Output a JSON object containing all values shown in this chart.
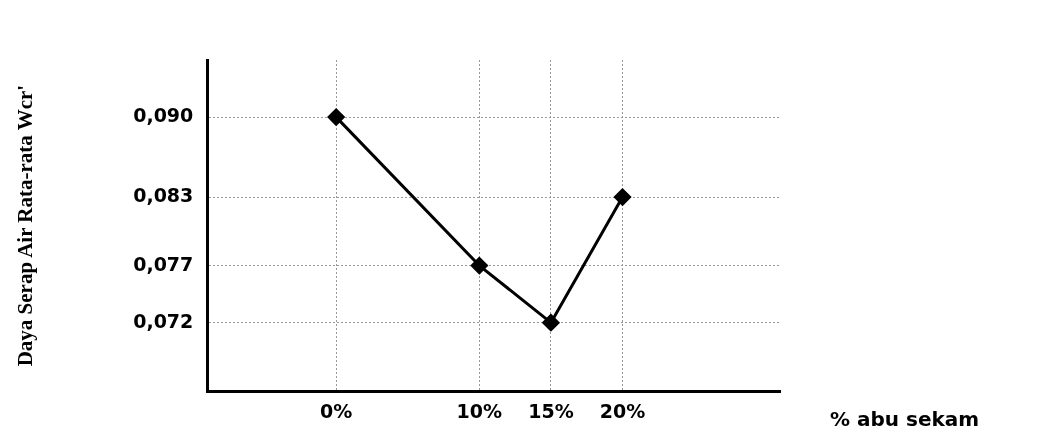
{
  "chart_data": {
    "type": "line",
    "xlabel": "% abu sekam",
    "ylabel": "Daya Serap Air Rata-rata Wcr'",
    "x": [
      0,
      10,
      15,
      20
    ],
    "series": [
      {
        "color": "#000000",
        "values": [
          0.09,
          0.077,
          0.072,
          0.083
        ]
      }
    ],
    "xlim": [
      -9,
      31
    ],
    "xticks": [
      {
        "value": 0,
        "label": "0%"
      },
      {
        "value": 10,
        "label": "10%"
      },
      {
        "value": 15,
        "label": "15%"
      },
      {
        "value": 20,
        "label": "20%"
      }
    ],
    "ylim": [
      0.066,
      0.095
    ],
    "yticks": [
      {
        "value": 0.072,
        "label": "0,072"
      },
      {
        "value": 0.077,
        "label": "0,077"
      },
      {
        "value": 0.083,
        "label": "0,083"
      },
      {
        "value": 0.09,
        "label": "0,090"
      }
    ],
    "grid": true,
    "marker": "diamond",
    "line_style": "solid"
  }
}
